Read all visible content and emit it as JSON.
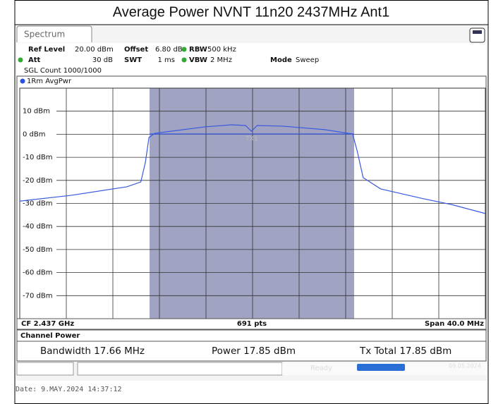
{
  "title": "Average Power NVNT 11n20 2437MHz Ant1",
  "tab": "Spectrum",
  "settings": {
    "ref_level": {
      "label": "Ref Level",
      "value": "20.00 dBm"
    },
    "offset": {
      "label": "Offset",
      "value": "6.80 dB"
    },
    "rbw": {
      "label": "RBW",
      "value": "500 kHz"
    },
    "att": {
      "label": "Att",
      "value": "30 dB"
    },
    "swt": {
      "label": "SWT",
      "value": "1 ms"
    },
    "vbw": {
      "label": "VBW",
      "value": "2 MHz"
    },
    "mode": {
      "label": "Mode",
      "value": "Sweep"
    },
    "count": "SGL Count 1000/1000"
  },
  "footer": {
    "center": "CF 2.437 GHz",
    "points": "691 pts",
    "span": "Span 40.0 MHz"
  },
  "channel_power": {
    "title": "Channel Power",
    "bandwidth": "Bandwidth 17.66 MHz",
    "power": "Power 17.85 dBm",
    "tx_total": "Tx Total 17.85 dBm"
  },
  "status": {
    "state": "Ready",
    "date": "09.05.2024"
  },
  "date_line": "Date: 9.MAY.2024  14:37:12",
  "chart_data": {
    "type": "line",
    "trace_label": "1Rm AvgPwr",
    "channel_label": "TX1",
    "xlim": [
      2.417,
      2.457
    ],
    "ylim": [
      -80,
      20
    ],
    "yticks": [
      {
        "value": 10,
        "label": "10 dBm"
      },
      {
        "value": 0,
        "label": "0 dBm"
      },
      {
        "value": -10,
        "label": "-10 dBm"
      },
      {
        "value": -20,
        "label": "-20 dBm"
      },
      {
        "value": -30,
        "label": "-30 dBm"
      },
      {
        "value": -40,
        "label": "-40 dBm"
      },
      {
        "value": -50,
        "label": "-50 dBm"
      },
      {
        "value": -60,
        "label": "-60 dBm"
      },
      {
        "value": -70,
        "label": "-70 dBm"
      }
    ],
    "grid": true,
    "x": [
      2.417,
      2.4214,
      2.4262,
      2.4274,
      2.4278,
      2.4281,
      2.4286,
      2.4329,
      2.4352,
      2.4364,
      2.4369,
      2.4374,
      2.4396,
      2.4432,
      2.4456,
      2.446,
      2.4465,
      2.448,
      2.4517,
      2.4541,
      2.457
    ],
    "series": [
      {
        "name": "1Rm AvgPwr",
        "color": "#3a5ae0",
        "values": [
          -29,
          -26.5,
          -22.8,
          -20.7,
          -12,
          -1.4,
          0.4,
          3.2,
          4.1,
          3.8,
          1.3,
          3.8,
          3.5,
          2,
          0.1,
          -7.5,
          -18.8,
          -23.7,
          -28,
          -30.5,
          -34.4
        ]
      }
    ]
  }
}
